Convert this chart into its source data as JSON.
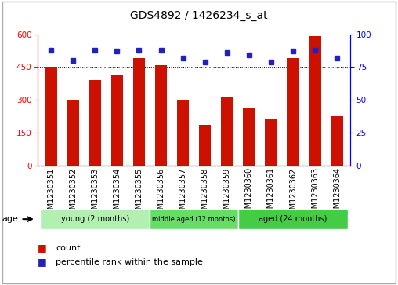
{
  "title": "GDS4892 / 1426234_s_at",
  "samples": [
    "GSM1230351",
    "GSM1230352",
    "GSM1230353",
    "GSM1230354",
    "GSM1230355",
    "GSM1230356",
    "GSM1230357",
    "GSM1230358",
    "GSM1230359",
    "GSM1230360",
    "GSM1230361",
    "GSM1230362",
    "GSM1230363",
    "GSM1230364"
  ],
  "counts": [
    450,
    300,
    390,
    415,
    490,
    460,
    300,
    185,
    310,
    265,
    210,
    490,
    590,
    225
  ],
  "percentiles": [
    88,
    80,
    88,
    87,
    88,
    88,
    82,
    79,
    86,
    84,
    79,
    87,
    88,
    82
  ],
  "ylim_left": [
    0,
    600
  ],
  "ylim_right": [
    0,
    100
  ],
  "yticks_left": [
    0,
    150,
    300,
    450,
    600
  ],
  "yticks_right": [
    0,
    25,
    50,
    75,
    100
  ],
  "groups": [
    {
      "label": "young (2 months)",
      "start": 0,
      "end": 5,
      "color": "#b2f0b2"
    },
    {
      "label": "middle aged (12 months)",
      "start": 5,
      "end": 9,
      "color": "#66dd66"
    },
    {
      "label": "aged (24 months)",
      "start": 9,
      "end": 14,
      "color": "#44cc44"
    }
  ],
  "bar_color": "#cc1100",
  "dot_color": "#2222bb",
  "title_fontsize": 10,
  "label_fontsize": 7,
  "tick_fontsize": 7.5
}
